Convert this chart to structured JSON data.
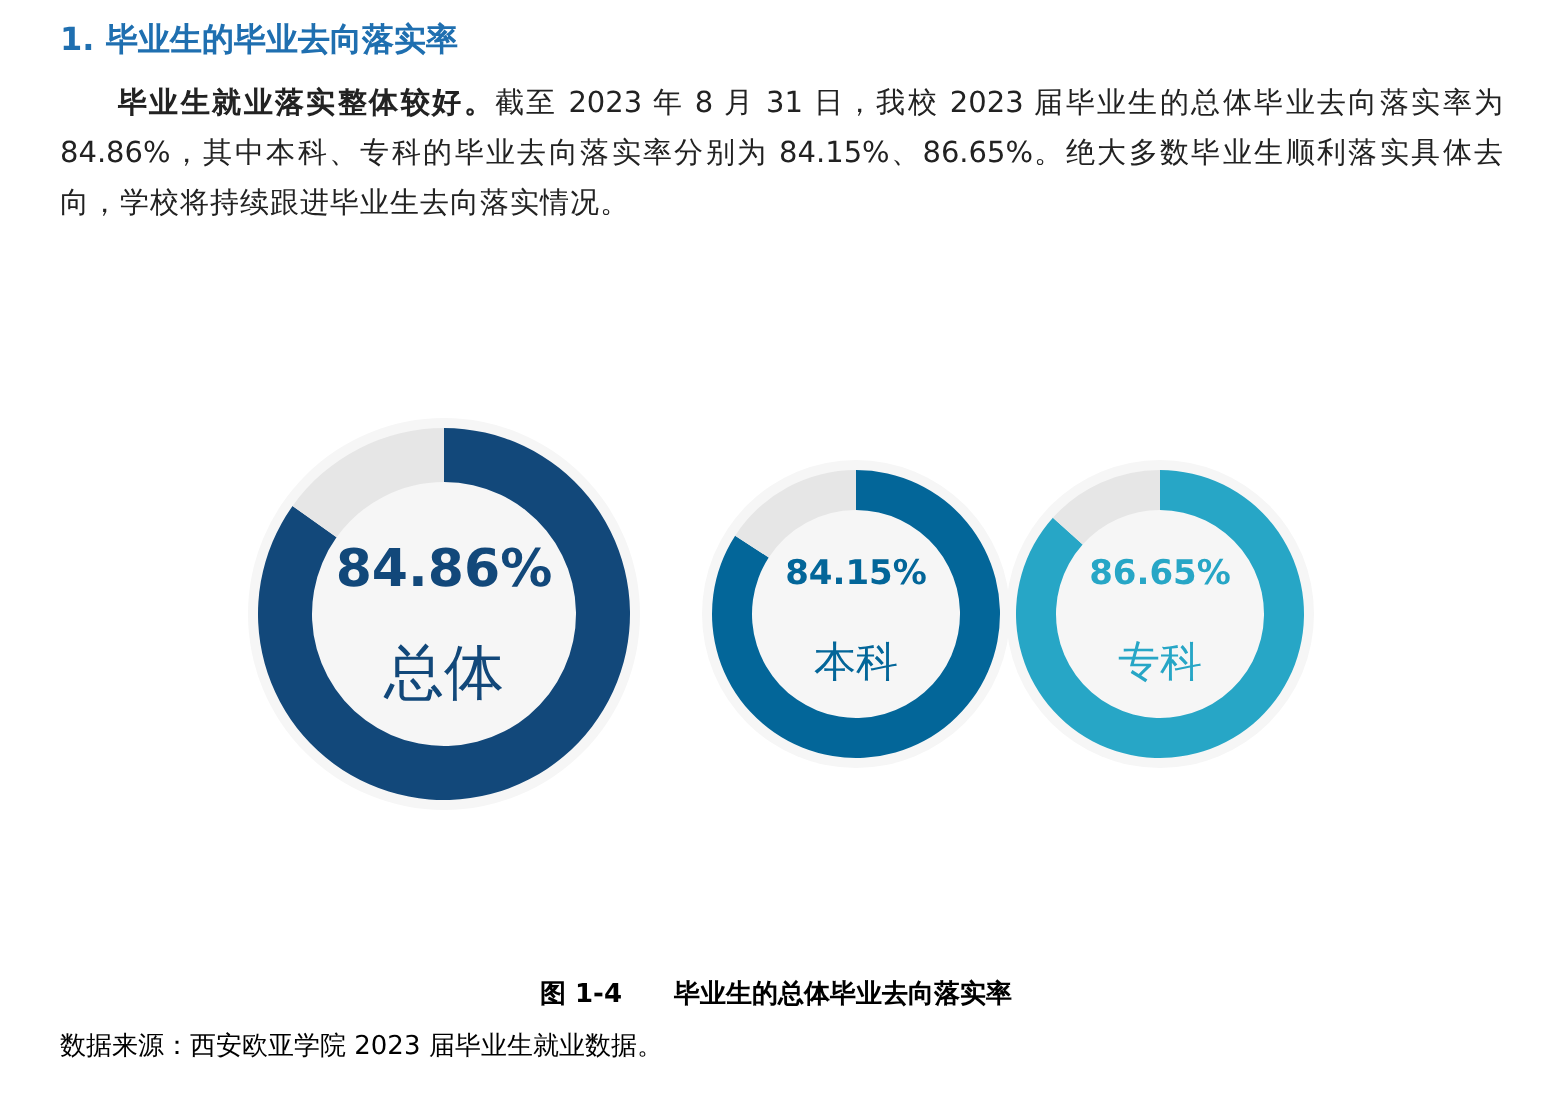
{
  "chart_data": [
    {
      "type": "donut",
      "title": "1. 毕业生的毕业去向落实率",
      "subtitle": "**毕业生就业落实整体较好。**截至 2023 年 8 月 31 日，我校 2023 届毕业生的总体毕业去向落实率为 84.86%，其中本科、专科的毕业去向落实率分别为 84.15%、86.65%。绝大多数毕业生顺利落实具体去向，学校将持续跟进毕业生去向落实情况。",
      "annotations": [
        "图 1-4　　毕业生的总体毕业去向落实率",
        "数据来源：西安欧亚学院 2023 届毕业生就业数据。"
      ],
      "categories": [
        "总体",
        null
      ],
      "values": [
        84.86,
        15.14
      ],
      "colors": [
        "#12487a",
        "#e6e6e6"
      ],
      "value_labels": [
        "84.86%",
        null
      ]
    },
    {
      "type": "donut",
      "categories": [
        "本科",
        null
      ],
      "values": [
        84.15,
        15.85
      ],
      "colors": [
        "#036699",
        "#e6e6e6"
      ],
      "value_labels": [
        "84.15%",
        null
      ]
    },
    {
      "type": "donut",
      "categories": [
        "专科",
        null
      ],
      "values": [
        86.65,
        13.35
      ],
      "colors": [
        "#27a6c6",
        "#e6e6e6"
      ],
      "value_labels": [
        "86.65%",
        null
      ]
    }
  ]
}
